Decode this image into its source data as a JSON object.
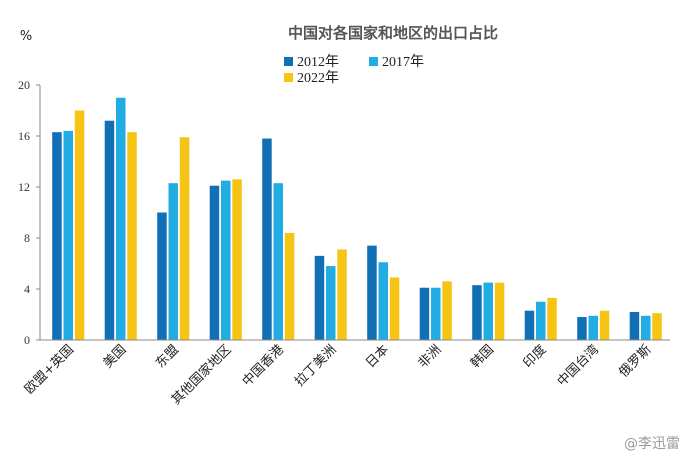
{
  "chart_data": {
    "type": "bar",
    "title": "中国对各国家和地区的出口占比",
    "ylabel": "%",
    "xlabel": "",
    "ylim": [
      0,
      20
    ],
    "yticks": [
      0,
      4,
      8,
      12,
      16,
      20
    ],
    "grid": false,
    "legend_position": "top-center",
    "categories": [
      "欧盟+英国",
      "美国",
      "东盟",
      "其他国家地区",
      "中国香港",
      "拉丁美洲",
      "日本",
      "非洲",
      "韩国",
      "印度",
      "中国台湾",
      "俄罗斯"
    ],
    "series": [
      {
        "name": "2012年",
        "color": "#1170b5",
        "values": [
          16.3,
          17.2,
          10.0,
          12.1,
          15.8,
          6.6,
          7.4,
          4.1,
          4.3,
          2.3,
          1.8,
          2.2
        ]
      },
      {
        "name": "2017年",
        "color": "#22ace4",
        "values": [
          16.4,
          19.0,
          12.3,
          12.5,
          12.3,
          5.8,
          6.1,
          4.1,
          4.5,
          3.0,
          1.9,
          1.9
        ]
      },
      {
        "name": "2022年",
        "color": "#f6c414",
        "values": [
          18.0,
          16.3,
          15.9,
          12.6,
          8.4,
          7.1,
          4.9,
          4.6,
          4.5,
          3.3,
          2.3,
          2.1
        ]
      }
    ]
  },
  "watermark": "@李迅雷"
}
